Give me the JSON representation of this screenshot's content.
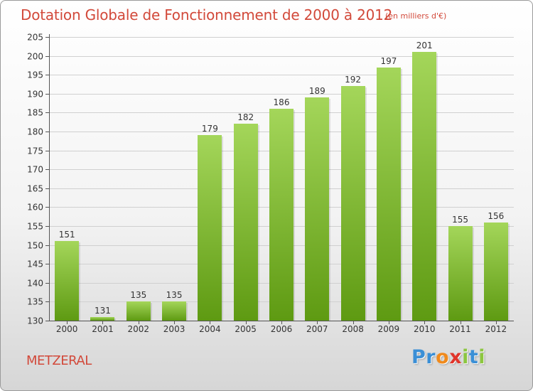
{
  "title": "Dotation Globale de Fonctionnement de 2000 à 2012",
  "unit_note": "(en milliers d'€)",
  "commune": "METZERAL",
  "logo": {
    "letters": [
      "P",
      "r",
      "o",
      "x",
      "i",
      "t",
      "i"
    ],
    "colors": [
      "#3a8fd6",
      "#3a8fd6",
      "#f08a1c",
      "#e0352b",
      "#8cc63f",
      "#3a8fd6",
      "#8cc63f"
    ]
  },
  "colors": {
    "bar_top": "#a4d65a",
    "bar_bottom": "#5e9a12",
    "title": "#d2493a",
    "grid": "#d0d0d0"
  },
  "chart_data": {
    "type": "bar",
    "categories": [
      "2000",
      "2001",
      "2002",
      "2003",
      "2004",
      "2005",
      "2006",
      "2007",
      "2008",
      "2009",
      "2010",
      "2011",
      "2012"
    ],
    "values": [
      151,
      131,
      135,
      135,
      179,
      182,
      186,
      189,
      192,
      197,
      201,
      155,
      156
    ],
    "title": "Dotation Globale de Fonctionnement de 2000 à 2012",
    "xlabel": "",
    "ylabel": "",
    "ylim": [
      130,
      205
    ],
    "yticks": [
      130,
      135,
      140,
      145,
      150,
      155,
      160,
      165,
      170,
      175,
      180,
      185,
      190,
      195,
      200,
      205
    ],
    "grid": true,
    "data_labels": true
  }
}
